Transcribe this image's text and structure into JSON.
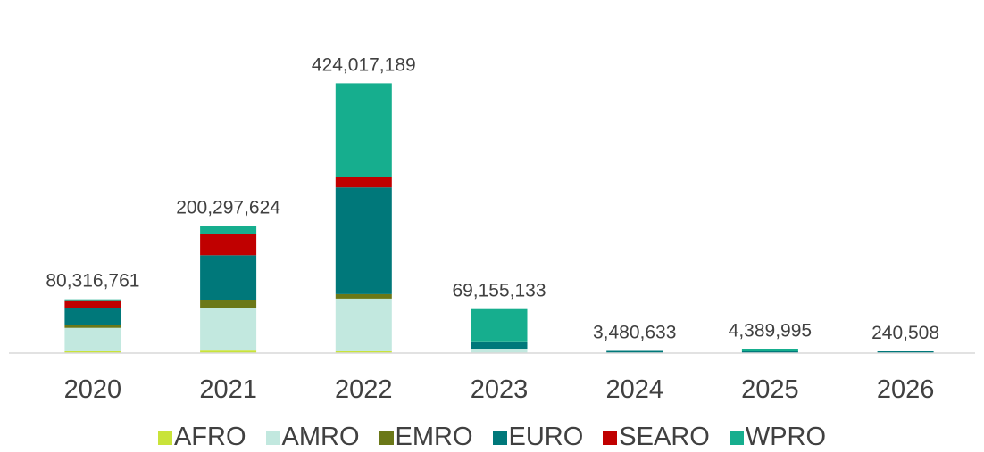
{
  "chart_data": {
    "type": "bar",
    "stacked": true,
    "title": "",
    "xlabel": "",
    "ylabel": "",
    "categories": [
      "2020",
      "2021",
      "2022",
      "2023",
      "2024",
      "2025",
      "2026"
    ],
    "totals": [
      "80,316,761",
      "200,297,624",
      "424,017,189",
      "69,155,133",
      "3,480,633",
      "4,389,995",
      "240,508"
    ],
    "series": [
      {
        "name": "AFRO",
        "color": "#c9e33a",
        "values": [
          300000,
          4000000,
          2000000,
          0,
          0,
          0,
          0
        ]
      },
      {
        "name": "AMRO",
        "color": "#c2e8df",
        "values": [
          37000000,
          67000000,
          83000000,
          7000000,
          0,
          0,
          0
        ]
      },
      {
        "name": "EMRO",
        "color": "#6b7818",
        "values": [
          5000000,
          12000000,
          7000000,
          0,
          0,
          0,
          0
        ]
      },
      {
        "name": "EURO",
        "color": "#00787a",
        "values": [
          26000000,
          71000000,
          168000000,
          10000000,
          3480633,
          1000000,
          240508
        ]
      },
      {
        "name": "SEARO",
        "color": "#c00000",
        "values": [
          11000000,
          33000000,
          16000000,
          0,
          0,
          0,
          0
        ]
      },
      {
        "name": "WPRO",
        "color": "#16ae8e",
        "values": [
          1016761,
          13297624,
          148017189,
          52155133,
          0,
          3389995,
          0
        ]
      }
    ],
    "ylim": [
      0,
      430000000
    ],
    "grid": false,
    "legend": "bottom"
  }
}
